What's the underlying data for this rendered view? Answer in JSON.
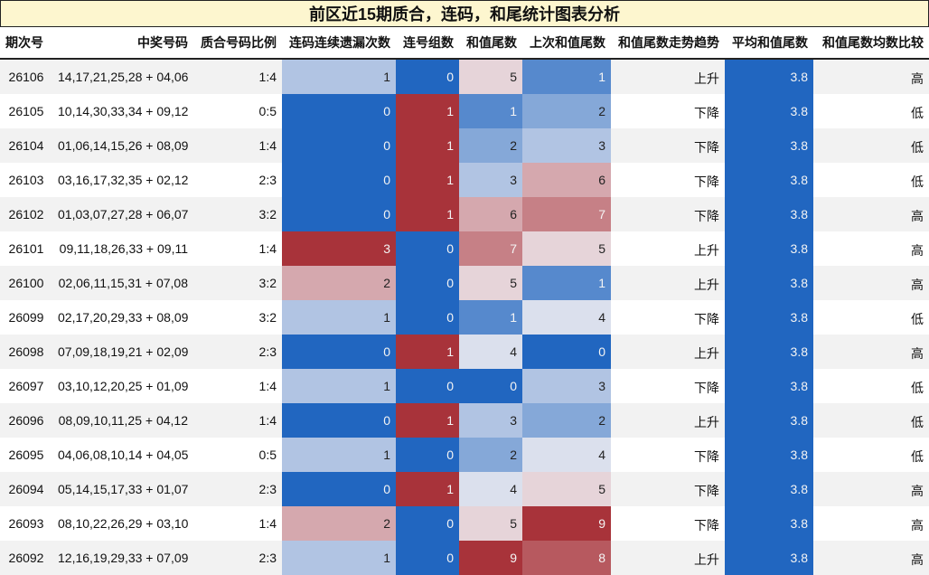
{
  "title": "前区近15期质合，连码，和尾统计图表分析",
  "columns": [
    "期次号",
    "中奖号码",
    "质合号码比例",
    "连码连续遗漏次数",
    "连号组数",
    "和值尾数",
    "上次和值尾数",
    "和值尾数走势趋势",
    "平均和值尾数",
    "和值尾数均数比较"
  ],
  "chart_data": {
    "type": "table",
    "rows": [
      {
        "issue": "26106",
        "numbers": "14,17,21,25,28 + 04,06",
        "ratio": "1:4",
        "miss": 1,
        "groups": 0,
        "tail": 5,
        "prev_tail": 1,
        "trend": "上升",
        "avg": "3.8",
        "cmp": "高"
      },
      {
        "issue": "26105",
        "numbers": "10,14,30,33,34 + 09,12",
        "ratio": "0:5",
        "miss": 0,
        "groups": 1,
        "tail": 1,
        "prev_tail": 2,
        "trend": "下降",
        "avg": "3.8",
        "cmp": "低"
      },
      {
        "issue": "26104",
        "numbers": "01,06,14,15,26 + 08,09",
        "ratio": "1:4",
        "miss": 0,
        "groups": 1,
        "tail": 2,
        "prev_tail": 3,
        "trend": "下降",
        "avg": "3.8",
        "cmp": "低"
      },
      {
        "issue": "26103",
        "numbers": "03,16,17,32,35 + 02,12",
        "ratio": "2:3",
        "miss": 0,
        "groups": 1,
        "tail": 3,
        "prev_tail": 6,
        "trend": "下降",
        "avg": "3.8",
        "cmp": "低"
      },
      {
        "issue": "26102",
        "numbers": "01,03,07,27,28 + 06,07",
        "ratio": "3:2",
        "miss": 0,
        "groups": 1,
        "tail": 6,
        "prev_tail": 7,
        "trend": "下降",
        "avg": "3.8",
        "cmp": "高"
      },
      {
        "issue": "26101",
        "numbers": "09,11,18,26,33 + 09,11",
        "ratio": "1:4",
        "miss": 3,
        "groups": 0,
        "tail": 7,
        "prev_tail": 5,
        "trend": "上升",
        "avg": "3.8",
        "cmp": "高"
      },
      {
        "issue": "26100",
        "numbers": "02,06,11,15,31 + 07,08",
        "ratio": "3:2",
        "miss": 2,
        "groups": 0,
        "tail": 5,
        "prev_tail": 1,
        "trend": "上升",
        "avg": "3.8",
        "cmp": "高"
      },
      {
        "issue": "26099",
        "numbers": "02,17,20,29,33 + 08,09",
        "ratio": "3:2",
        "miss": 1,
        "groups": 0,
        "tail": 1,
        "prev_tail": 4,
        "trend": "下降",
        "avg": "3.8",
        "cmp": "低"
      },
      {
        "issue": "26098",
        "numbers": "07,09,18,19,21 + 02,09",
        "ratio": "2:3",
        "miss": 0,
        "groups": 1,
        "tail": 4,
        "prev_tail": 0,
        "trend": "上升",
        "avg": "3.8",
        "cmp": "高"
      },
      {
        "issue": "26097",
        "numbers": "03,10,12,20,25 + 01,09",
        "ratio": "1:4",
        "miss": 1,
        "groups": 0,
        "tail": 0,
        "prev_tail": 3,
        "trend": "下降",
        "avg": "3.8",
        "cmp": "低"
      },
      {
        "issue": "26096",
        "numbers": "08,09,10,11,25 + 04,12",
        "ratio": "1:4",
        "miss": 0,
        "groups": 1,
        "tail": 3,
        "prev_tail": 2,
        "trend": "上升",
        "avg": "3.8",
        "cmp": "低"
      },
      {
        "issue": "26095",
        "numbers": "04,06,08,10,14 + 04,05",
        "ratio": "0:5",
        "miss": 1,
        "groups": 0,
        "tail": 2,
        "prev_tail": 4,
        "trend": "下降",
        "avg": "3.8",
        "cmp": "低"
      },
      {
        "issue": "26094",
        "numbers": "05,14,15,17,33 + 01,07",
        "ratio": "2:3",
        "miss": 0,
        "groups": 1,
        "tail": 4,
        "prev_tail": 5,
        "trend": "下降",
        "avg": "3.8",
        "cmp": "高"
      },
      {
        "issue": "26093",
        "numbers": "08,10,22,26,29 + 03,10",
        "ratio": "1:4",
        "miss": 2,
        "groups": 0,
        "tail": 5,
        "prev_tail": 9,
        "trend": "下降",
        "avg": "3.8",
        "cmp": "高"
      },
      {
        "issue": "26092",
        "numbers": "12,16,19,29,33 + 07,09",
        "ratio": "2:3",
        "miss": 1,
        "groups": 0,
        "tail": 9,
        "prev_tail": 8,
        "trend": "上升",
        "avg": "3.8",
        "cmp": "高"
      }
    ]
  },
  "heat_colors": {
    "low": "#2166c0",
    "mid": "#f0eef2",
    "high": "#a8333a"
  },
  "heat_ranges": {
    "miss": [
      0,
      3
    ],
    "groups": [
      0,
      1
    ],
    "tail": [
      0,
      9
    ],
    "prev_tail": [
      0,
      9
    ]
  },
  "avg_color": "#2166c0",
  "header_bg": "#fdf6cf"
}
